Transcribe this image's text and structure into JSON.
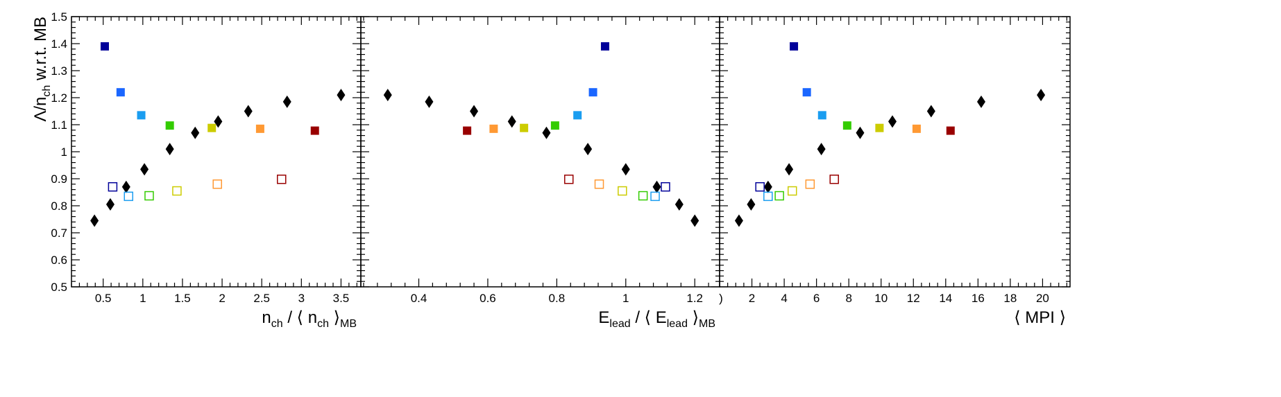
{
  "chart_data": {
    "type": "scatter",
    "colors": {
      "black": "#000000",
      "navy": "#000099",
      "blue": "#1a66ff",
      "cyan": "#1a9df0",
      "green": "#33cc00",
      "yellow": "#cccc00",
      "orange": "#ff9933",
      "darkred": "#990000"
    },
    "y_axis": {
      "range": [
        0.5,
        1.5
      ],
      "ticks": [
        0.5,
        0.6,
        0.7,
        0.8,
        0.9,
        1,
        1.1,
        1.2,
        1.3,
        1.4,
        1.5
      ],
      "tick_labels": [
        "0.5",
        "0.6",
        "0.7",
        "0.8",
        "0.9",
        "1",
        "1.1",
        "1.2",
        "1.3",
        "1.4",
        "1.5"
      ],
      "label": {
        "main": "Λ/n",
        "sub": "ch",
        "rest": " w.r.t. MB"
      }
    },
    "panels": [
      {
        "x_range": [
          0.1,
          3.75
        ],
        "ticks": [
          0.5,
          1,
          1.5,
          2,
          2.5,
          3,
          3.5
        ],
        "tick_labels": [
          "0.5",
          "1",
          "1.5",
          "2",
          "2.5",
          "3",
          "3.5"
        ],
        "minor_step": 0.1,
        "xlabel": {
          "parts": [
            {
              "t": "n",
              "s": "n"
            },
            {
              "t": "ch",
              "s": "sub"
            },
            {
              "t": " / ⟨ n",
              "s": "n"
            },
            {
              "t": "ch",
              "s": "sub"
            },
            {
              "t": " ⟩",
              "s": "n"
            },
            {
              "t": "MB",
              "s": "sub"
            }
          ]
        },
        "series": [
          {
            "marker": "diamond",
            "color": "black",
            "points": [
              [
                0.39,
                0.745
              ],
              [
                0.59,
                0.805
              ],
              [
                0.79,
                0.87
              ],
              [
                1.02,
                0.935
              ],
              [
                1.34,
                1.01
              ],
              [
                1.66,
                1.07
              ],
              [
                1.95,
                1.112
              ],
              [
                2.33,
                1.15
              ],
              [
                2.82,
                1.185
              ],
              [
                3.5,
                1.21
              ]
            ]
          },
          {
            "marker": "square-filled",
            "points": [
              [
                0.52,
                1.39,
                "navy"
              ],
              [
                0.72,
                1.22,
                "blue"
              ],
              [
                0.98,
                1.135,
                "cyan"
              ],
              [
                1.34,
                1.097,
                "green"
              ],
              [
                1.87,
                1.088,
                "yellow"
              ],
              [
                2.48,
                1.085,
                "orange"
              ],
              [
                3.17,
                1.078,
                "darkred"
              ]
            ]
          },
          {
            "marker": "square-open",
            "points": [
              [
                0.62,
                0.87,
                "navy"
              ],
              [
                0.82,
                0.835,
                "cyan"
              ],
              [
                1.08,
                0.837,
                "green"
              ],
              [
                1.43,
                0.855,
                "yellow"
              ],
              [
                1.94,
                0.88,
                "orange"
              ],
              [
                2.75,
                0.898,
                "darkred"
              ]
            ]
          }
        ]
      },
      {
        "x_range": [
          0.232,
          1.272
        ],
        "ticks": [
          0.4,
          0.6,
          0.8,
          1,
          1.2
        ],
        "tick_labels": [
          "0.4",
          "0.6",
          "0.8",
          "1",
          "1.2"
        ],
        "minor_step": 0.04,
        "xlabel": {
          "parts": [
            {
              "t": "E",
              "s": "n"
            },
            {
              "t": "lead",
              "s": "sub"
            },
            {
              "t": " / ⟨ E",
              "s": "n"
            },
            {
              "t": "lead",
              "s": "sub"
            },
            {
              "t": " ⟩",
              "s": "n"
            },
            {
              "t": "MB",
              "s": "sub"
            }
          ]
        },
        "series": [
          {
            "marker": "diamond",
            "color": "black",
            "points": [
              [
                0.31,
                1.21
              ],
              [
                0.43,
                1.185
              ],
              [
                0.56,
                1.15
              ],
              [
                0.67,
                1.112
              ],
              [
                0.77,
                1.07
              ],
              [
                0.89,
                1.01
              ],
              [
                1.0,
                0.935
              ],
              [
                1.09,
                0.87
              ],
              [
                1.155,
                0.805
              ],
              [
                1.2,
                0.745
              ]
            ]
          },
          {
            "marker": "square-filled",
            "points": [
              [
                0.54,
                1.078,
                "darkred"
              ],
              [
                0.617,
                1.085,
                "orange"
              ],
              [
                0.705,
                1.088,
                "yellow"
              ],
              [
                0.795,
                1.097,
                "green"
              ],
              [
                0.86,
                1.135,
                "cyan"
              ],
              [
                0.905,
                1.22,
                "blue"
              ],
              [
                0.94,
                1.39,
                "navy"
              ]
            ]
          },
          {
            "marker": "square-open",
            "points": [
              [
                0.835,
                0.898,
                "darkred"
              ],
              [
                0.923,
                0.88,
                "orange"
              ],
              [
                0.99,
                0.855,
                "yellow"
              ],
              [
                1.05,
                0.837,
                "green"
              ],
              [
                1.085,
                0.835,
                "cyan"
              ],
              [
                1.115,
                0.87,
                "navy"
              ]
            ]
          }
        ]
      },
      {
        "x_range": [
          0,
          21.7
        ],
        "ticks": [
          2,
          4,
          6,
          8,
          10,
          12,
          14,
          16,
          18,
          20
        ],
        "tick_labels": [
          "2",
          "4",
          "6",
          "8",
          "10",
          "12",
          "14",
          "16",
          "18",
          "20"
        ],
        "partial_first_label": {
          "text": ")",
          "value": 0
        },
        "minor_step": 0.5,
        "xlabel": {
          "parts": [
            {
              "t": "⟨ MPI ⟩",
              "s": "n"
            }
          ]
        },
        "series": [
          {
            "marker": "diamond",
            "color": "black",
            "points": [
              [
                1.2,
                0.745
              ],
              [
                1.95,
                0.805
              ],
              [
                3.0,
                0.87
              ],
              [
                4.3,
                0.935
              ],
              [
                6.3,
                1.01
              ],
              [
                8.7,
                1.07
              ],
              [
                10.7,
                1.112
              ],
              [
                13.1,
                1.15
              ],
              [
                16.2,
                1.185
              ],
              [
                19.9,
                1.21
              ]
            ]
          },
          {
            "marker": "square-filled",
            "points": [
              [
                4.6,
                1.39,
                "navy"
              ],
              [
                5.4,
                1.22,
                "blue"
              ],
              [
                6.35,
                1.135,
                "cyan"
              ],
              [
                7.9,
                1.097,
                "green"
              ],
              [
                9.9,
                1.088,
                "yellow"
              ],
              [
                12.2,
                1.085,
                "orange"
              ],
              [
                14.3,
                1.078,
                "darkred"
              ]
            ]
          },
          {
            "marker": "square-open",
            "points": [
              [
                2.5,
                0.87,
                "navy"
              ],
              [
                3.0,
                0.835,
                "cyan"
              ],
              [
                3.7,
                0.837,
                "green"
              ],
              [
                4.5,
                0.855,
                "yellow"
              ],
              [
                5.6,
                0.88,
                "orange"
              ],
              [
                7.1,
                0.898,
                "darkred"
              ]
            ]
          }
        ]
      }
    ]
  }
}
